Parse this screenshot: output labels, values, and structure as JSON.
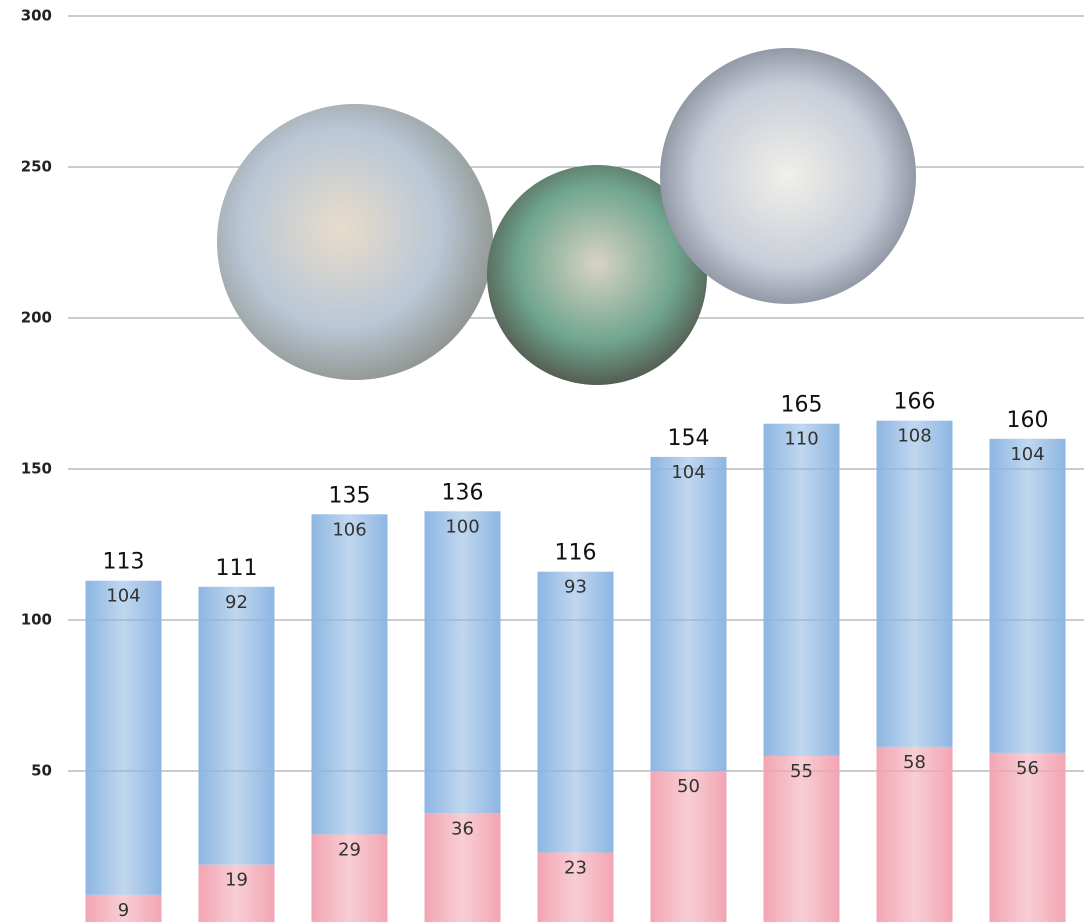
{
  "chart_data": {
    "type": "stacked-bar",
    "categories": [
      null,
      null,
      null,
      null,
      null,
      null,
      null,
      null,
      null
    ],
    "series": [
      {
        "color": "#f2a5b3",
        "values": [
          9,
          19,
          29,
          36,
          23,
          50,
          55,
          58,
          56
        ]
      },
      {
        "color": "#8db6e2",
        "values": [
          104,
          92,
          106,
          100,
          93,
          104,
          110,
          108,
          104
        ]
      }
    ],
    "totals": [
      113,
      111,
      135,
      136,
      116,
      154,
      165,
      166,
      160
    ],
    "ylim": [
      0,
      300
    ],
    "yticks": [
      50,
      100,
      150,
      200,
      250,
      300
    ],
    "grid": true
  }
}
